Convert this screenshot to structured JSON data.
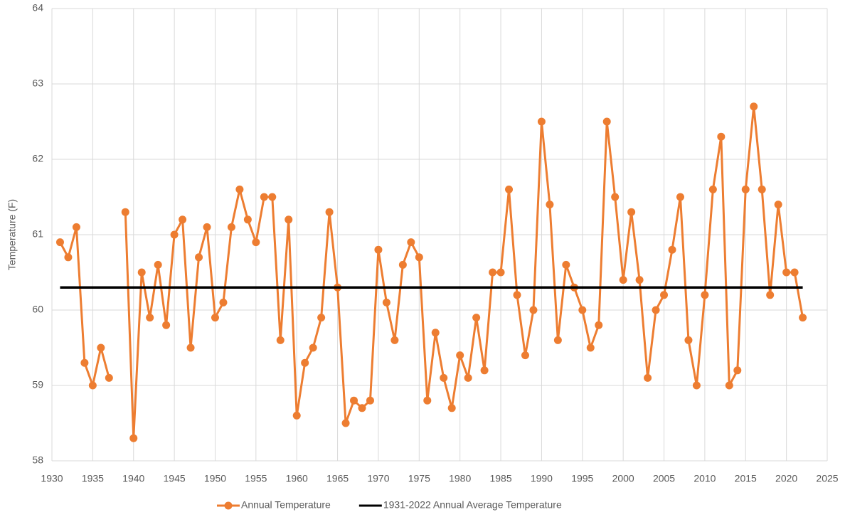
{
  "chart_data": {
    "type": "line",
    "ylabel": "Temperature (F)",
    "xlim": [
      1930,
      2025
    ],
    "xticks": [
      1930,
      1935,
      1940,
      1945,
      1950,
      1955,
      1960,
      1965,
      1970,
      1975,
      1980,
      1985,
      1990,
      1995,
      2000,
      2005,
      2010,
      2015,
      2020,
      2025
    ],
    "ylim": [
      58,
      64
    ],
    "yticks": [
      58,
      59,
      60,
      61,
      62,
      63,
      64
    ],
    "grid": true,
    "legend": "bottom",
    "series": [
      {
        "name": "Annual Temperature",
        "color": "#ed7d31",
        "marker": true,
        "x": [
          1931,
          1932,
          1933,
          1934,
          1935,
          1936,
          1937,
          1938,
          1939,
          1940,
          1941,
          1942,
          1943,
          1944,
          1945,
          1946,
          1947,
          1948,
          1949,
          1950,
          1951,
          1952,
          1953,
          1954,
          1955,
          1956,
          1957,
          1958,
          1959,
          1960,
          1961,
          1962,
          1963,
          1964,
          1965,
          1966,
          1967,
          1968,
          1969,
          1970,
          1971,
          1972,
          1973,
          1974,
          1975,
          1976,
          1977,
          1978,
          1979,
          1980,
          1981,
          1982,
          1983,
          1984,
          1985,
          1986,
          1987,
          1988,
          1989,
          1990,
          1991,
          1992,
          1993,
          1994,
          1995,
          1996,
          1997,
          1998,
          1999,
          2000,
          2001,
          2002,
          2003,
          2004,
          2005,
          2006,
          2007,
          2008,
          2009,
          2010,
          2011,
          2012,
          2013,
          2014,
          2015,
          2016,
          2017,
          2018,
          2019,
          2020,
          2021,
          2022
        ],
        "values": [
          60.9,
          60.7,
          61.1,
          59.3,
          59.0,
          59.5,
          59.1,
          null,
          61.3,
          58.3,
          60.5,
          59.9,
          60.6,
          59.8,
          61.0,
          61.2,
          59.5,
          60.7,
          61.1,
          59.9,
          60.1,
          61.1,
          61.6,
          61.2,
          60.9,
          61.5,
          61.5,
          59.6,
          61.2,
          58.6,
          59.3,
          59.5,
          59.9,
          61.3,
          60.3,
          58.5,
          58.8,
          58.7,
          58.8,
          60.8,
          60.1,
          59.6,
          60.6,
          60.9,
          60.7,
          58.8,
          59.7,
          59.1,
          58.7,
          59.4,
          59.1,
          59.9,
          59.2,
          60.5,
          60.5,
          61.6,
          60.2,
          59.4,
          60.0,
          62.5,
          61.4,
          59.6,
          60.6,
          60.3,
          60.0,
          59.5,
          59.8,
          62.5,
          61.5,
          60.4,
          61.3,
          60.4,
          59.1,
          60.0,
          60.2,
          60.8,
          61.5,
          59.6,
          59.0,
          60.2,
          61.6,
          62.3,
          59.0,
          59.2,
          61.6,
          62.7,
          61.6,
          60.2,
          61.4,
          60.5,
          60.5,
          59.9
        ]
      },
      {
        "name": "1931-2022 Annual Average Temperature",
        "color": "#000000",
        "marker": false,
        "x": [
          1931,
          2022
        ],
        "values": [
          60.3,
          60.3
        ]
      }
    ]
  }
}
